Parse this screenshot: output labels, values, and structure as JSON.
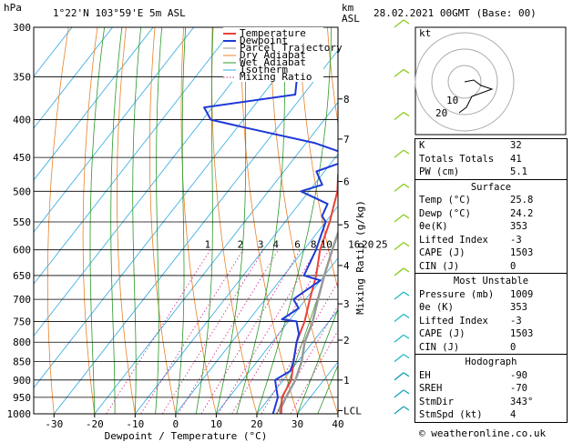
{
  "header": {
    "station": "1°22'N 103°59'E 5m ASL",
    "date": "28.02.2021 00GMT (Base: 00)",
    "p_unit": "hPa",
    "km_unit_1": "km",
    "km_unit_2": "ASL"
  },
  "chart_data": {
    "type": "skew-t",
    "title": "",
    "xlabel": "Dewpoint / Temperature (°C)",
    "ylabel_right": "Mixing Ratio (g/kg)",
    "pressure_levels": [
      300,
      350,
      400,
      450,
      500,
      550,
      600,
      650,
      700,
      750,
      800,
      850,
      900,
      950,
      1000
    ],
    "temperature_ticks": [
      -30,
      -20,
      -10,
      0,
      10,
      20,
      30,
      40
    ],
    "xlim": [
      -35,
      40
    ],
    "km_ticks": [
      {
        "label": "8",
        "p": 375
      },
      {
        "label": "7",
        "p": 425
      },
      {
        "label": "6",
        "p": 485
      },
      {
        "label": "5",
        "p": 555
      },
      {
        "label": "4",
        "p": 630
      },
      {
        "label": "3",
        "p": 710
      },
      {
        "label": "2",
        "p": 795
      },
      {
        "label": "1",
        "p": 900
      },
      {
        "label": "LCL",
        "p": 990
      }
    ],
    "mixing_ratio_labels": [
      "1",
      "2",
      "3",
      "4",
      "6",
      "8",
      "10",
      "16",
      "20",
      "25"
    ],
    "legend": [
      "Temperature",
      "Dewpoint",
      "Parcel Trajectory",
      "Dry Adiabat",
      "Wet Adiabat",
      "Isotherm",
      "Mixing Ratio"
    ],
    "colors": {
      "temperature": "#e8423a",
      "dewpoint": "#1f3ad6",
      "parcel": "#999999",
      "dry_adiabat": "#e8822a",
      "wet_adiabat": "#2a9a2a",
      "isotherm": "#2aa8e0",
      "mixing_ratio": "#cc2288"
    },
    "series": [
      {
        "name": "Temperature",
        "points": [
          [
            1000,
            26
          ],
          [
            950,
            23
          ],
          [
            900,
            22
          ],
          [
            850,
            19
          ],
          [
            800,
            16
          ],
          [
            750,
            14
          ],
          [
            700,
            11
          ],
          [
            650,
            8
          ],
          [
            600,
            4
          ],
          [
            550,
            1
          ],
          [
            500,
            -3
          ],
          [
            475,
            -6
          ],
          [
            450,
            -8
          ],
          [
            400,
            -13
          ],
          [
            375,
            -17
          ],
          [
            350,
            -21
          ],
          [
            300,
            -31
          ]
        ]
      },
      {
        "name": "Dewpoint",
        "points": [
          [
            1000,
            24
          ],
          [
            975,
            23
          ],
          [
            950,
            22
          ],
          [
            925,
            20
          ],
          [
            900,
            18
          ],
          [
            875,
            20
          ],
          [
            850,
            19
          ],
          [
            800,
            16
          ],
          [
            780,
            15
          ],
          [
            750,
            12
          ],
          [
            745,
            8
          ],
          [
            720,
            10
          ],
          [
            700,
            7
          ],
          [
            685,
            8
          ],
          [
            660,
            10
          ],
          [
            650,
            5
          ],
          [
            600,
            3
          ],
          [
            550,
            0
          ],
          [
            540,
            -2
          ],
          [
            520,
            -3
          ],
          [
            500,
            -12
          ],
          [
            490,
            -8
          ],
          [
            470,
            -12
          ],
          [
            450,
            -5
          ],
          [
            430,
            -18
          ],
          [
            410,
            -38
          ],
          [
            400,
            -48
          ],
          [
            385,
            -52
          ],
          [
            370,
            -32
          ],
          [
            350,
            -35
          ],
          [
            300,
            -40
          ]
        ]
      },
      {
        "name": "Parcel Trajectory",
        "points": [
          [
            1000,
            26
          ],
          [
            990,
            25
          ],
          [
            950,
            24
          ],
          [
            900,
            23
          ],
          [
            850,
            21
          ],
          [
            800,
            18
          ],
          [
            750,
            16
          ],
          [
            700,
            13
          ],
          [
            650,
            10
          ],
          [
            600,
            7
          ],
          [
            550,
            4
          ],
          [
            500,
            0
          ],
          [
            450,
            -4
          ],
          [
            400,
            -10
          ],
          [
            350,
            -17
          ],
          [
            300,
            -25
          ]
        ]
      }
    ]
  },
  "indices": {
    "rows": [
      {
        "label": "K",
        "value": "32"
      },
      {
        "label": "Totals Totals",
        "value": "41"
      },
      {
        "label": "PW (cm)",
        "value": "5.1"
      }
    ],
    "surface": {
      "title": "Surface",
      "rows": [
        {
          "label": "Temp (°C)",
          "value": "25.8"
        },
        {
          "label": "Dewp (°C)",
          "value": "24.2"
        },
        {
          "label": "θe(K)",
          "value": "353"
        },
        {
          "label": "Lifted Index",
          "value": "-3"
        },
        {
          "label": "CAPE (J)",
          "value": "1503"
        },
        {
          "label": "CIN (J)",
          "value": "0"
        }
      ]
    },
    "most_unstable": {
      "title": "Most Unstable",
      "rows": [
        {
          "label": "Pressure (mb)",
          "value": "1009"
        },
        {
          "label": "θe (K)",
          "value": "353"
        },
        {
          "label": "Lifted Index",
          "value": "-3"
        },
        {
          "label": "CAPE (J)",
          "value": "1503"
        },
        {
          "label": "CIN (J)",
          "value": "0"
        }
      ]
    },
    "hodograph": {
      "title": "Hodograph",
      "rows": [
        {
          "label": "EH",
          "value": "-90"
        },
        {
          "label": "SREH",
          "value": "-70"
        },
        {
          "label": "StmDir",
          "value": "343°"
        },
        {
          "label": "StmSpd (kt)",
          "value": "4"
        }
      ]
    }
  },
  "hodograph_plot": {
    "unit_label": "kt",
    "ring_labels": [
      "10",
      "20"
    ]
  },
  "footer": "© weatheronline.co.uk"
}
